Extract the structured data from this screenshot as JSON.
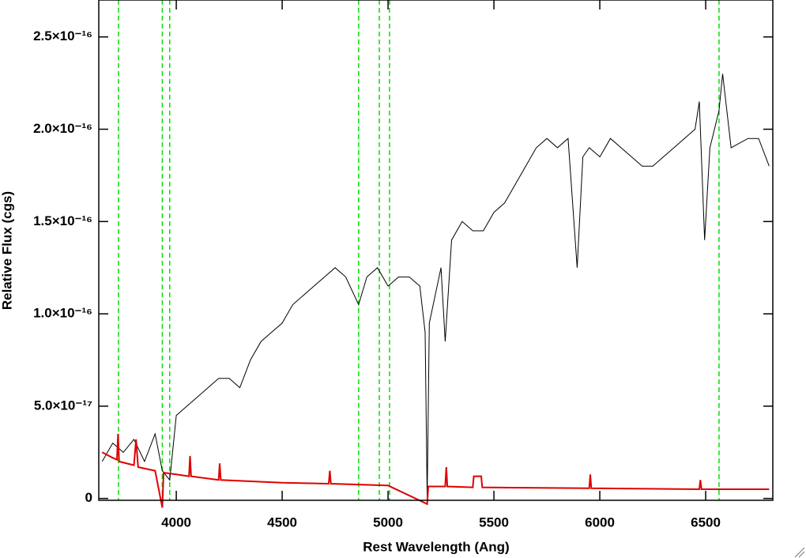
{
  "chart_data": {
    "type": "line",
    "x_label": "Rest Wavelength (Ang)",
    "y_label": "Relative Flux (cgs)",
    "xlim": [
      3634,
      6817
    ],
    "ylim": [
      -1e-18,
      2.7e-16
    ],
    "xticks": [
      4000,
      4500,
      5000,
      5500,
      6000,
      6500
    ],
    "yticks": [
      0,
      {
        "value": 5e-17,
        "label": "5.0×10⁻¹⁷"
      },
      {
        "value": 1e-16,
        "label": "1.0×10⁻¹⁶"
      },
      {
        "value": 1.5e-16,
        "label": "1.5×10⁻¹⁶"
      },
      {
        "value": 2e-16,
        "label": "2.0×10⁻¹⁶"
      },
      {
        "value": 2.5e-16,
        "label": "2.5×10⁻¹⁶"
      }
    ],
    "reference_lines": {
      "color": "#00e000",
      "x": [
        3727,
        3934,
        3969,
        4861,
        4959,
        5007,
        6563
      ]
    },
    "series": [
      {
        "color": "#000000",
        "x": [
          3650,
          3700,
          3750,
          3800,
          3850,
          3900,
          3934,
          3969,
          4000,
          4050,
          4100,
          4150,
          4200,
          4250,
          4300,
          4350,
          4400,
          4450,
          4500,
          4550,
          4600,
          4650,
          4700,
          4750,
          4800,
          4861,
          4900,
          4950,
          5000,
          5050,
          5100,
          5150,
          5175,
          5185,
          5195,
          5250,
          5270,
          5300,
          5350,
          5400,
          5450,
          5500,
          5550,
          5600,
          5650,
          5700,
          5750,
          5800,
          5850,
          5893,
          5920,
          5950,
          6000,
          6050,
          6100,
          6150,
          6200,
          6250,
          6300,
          6350,
          6400,
          6450,
          6470,
          6495,
          6520,
          6563,
          6580,
          6620,
          6700,
          6750,
          6800
        ],
        "values": [
          2e-17,
          3e-17,
          2.5e-17,
          3.2e-17,
          2e-17,
          3.5e-17,
          1.5e-17,
          1e-17,
          4.5e-17,
          5e-17,
          5.5e-17,
          6e-17,
          6.5e-17,
          6.5e-17,
          6e-17,
          7.5e-17,
          8.5e-17,
          9e-17,
          9.5e-17,
          1.05e-16,
          1.1e-16,
          1.15e-16,
          1.2e-16,
          1.25e-16,
          1.2e-16,
          1.05e-16,
          1.2e-16,
          1.25e-16,
          1.15e-16,
          1.2e-16,
          1.2e-16,
          1.15e-16,
          9e-17,
          0,
          9.5e-17,
          1.25e-16,
          8.5e-17,
          1.4e-16,
          1.5e-16,
          1.45e-16,
          1.45e-16,
          1.55e-16,
          1.6e-16,
          1.7e-16,
          1.8e-16,
          1.9e-16,
          1.95e-16,
          1.9e-16,
          1.95e-16,
          1.25e-16,
          1.85e-16,
          1.9e-16,
          1.85e-16,
          1.95e-16,
          1.9e-16,
          1.85e-16,
          1.8e-16,
          1.8e-16,
          1.85e-16,
          1.9e-16,
          1.95e-16,
          2e-16,
          2.15e-16,
          1.4e-16,
          1.9e-16,
          2.1e-16,
          2.3e-16,
          1.9e-16,
          1.95e-16,
          1.95e-16,
          1.8e-16
        ]
      },
      {
        "color": "#e00000",
        "x": [
          3650,
          3700,
          3720,
          3725,
          3730,
          3800,
          3810,
          3820,
          3900,
          3934,
          3940,
          4000,
          4060,
          4065,
          4070,
          4200,
          4205,
          4210,
          4500,
          4720,
          4725,
          4730,
          5000,
          5185,
          5190,
          5270,
          5275,
          5280,
          5400,
          5405,
          5440,
          5445,
          5950,
          5955,
          5960,
          6470,
          6475,
          6480,
          6800
        ],
        "values": [
          2.5e-17,
          2.2e-17,
          2.1e-17,
          3.5e-17,
          2e-17,
          1.8e-17,
          3.2e-17,
          1.7e-17,
          1.5e-17,
          -5e-18,
          1.4e-17,
          1.3e-17,
          1.2e-17,
          2.3e-17,
          1.2e-17,
          1e-17,
          1.9e-17,
          1e-17,
          8.5e-18,
          8e-18,
          1.5e-17,
          8e-18,
          7e-18,
          -3e-18,
          6.5e-18,
          6.5e-18,
          1.7e-17,
          6.5e-18,
          6e-18,
          1.2e-17,
          1.2e-17,
          6e-18,
          5.5e-18,
          1.3e-17,
          5.5e-18,
          5e-18,
          1e-17,
          5e-18,
          5e-18
        ]
      }
    ]
  }
}
